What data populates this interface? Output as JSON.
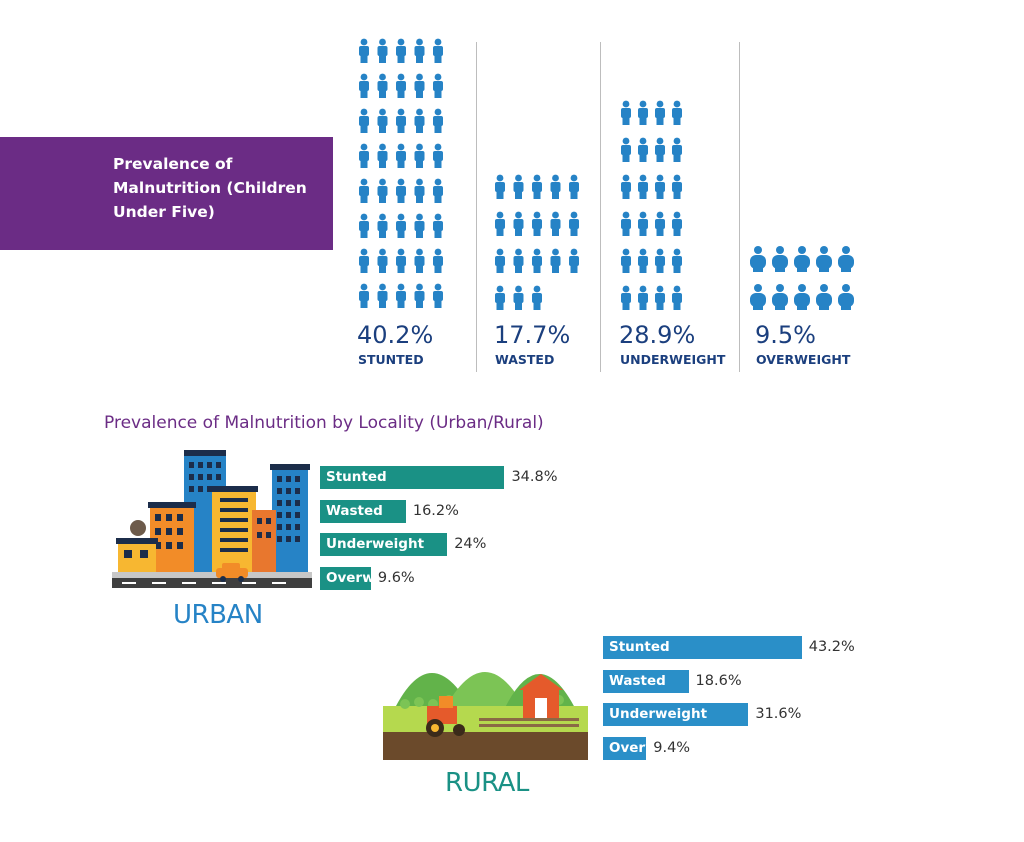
{
  "header": {
    "title": "Prevalence of Malnutrition (Children Under Five)"
  },
  "colors": {
    "purple": "#6b2c85",
    "figure_blue": "#2683c6",
    "stat_text": "#1b3f7e",
    "urban_bar": "#1a9185",
    "rural_bar": "#2a8fc8"
  },
  "chart_data": [
    {
      "type": "bar",
      "title": "Prevalence of Malnutrition (Children Under Five)",
      "categories": [
        "STUNTED",
        "WASTED",
        "UNDERWEIGHT",
        "OVERWEIGHT"
      ],
      "values": [
        40.2,
        17.7,
        28.9,
        9.5
      ],
      "value_labels": [
        "40.2%",
        "17.7%",
        "28.9%",
        "9.5%"
      ],
      "icon": "child-figure-icon"
    },
    {
      "type": "bar",
      "title": "Prevalence of Malnutrition by Locality (Urban/Rural)",
      "scene_label": "URBAN",
      "categories": [
        "Stunted",
        "Wasted",
        "Underweight",
        "Overweight"
      ],
      "values": [
        34.8,
        16.2,
        24,
        9.6
      ],
      "value_labels": [
        "34.8%",
        "16.2%",
        "24%",
        "9.6%"
      ],
      "color": "#1a9185"
    },
    {
      "type": "bar",
      "title": "Prevalence of Malnutrition by Locality (Urban/Rural)",
      "scene_label": "RURAL",
      "categories": [
        "Stunted",
        "Wasted",
        "Underweight",
        "Overweight"
      ],
      "values": [
        43.2,
        18.6,
        31.6,
        9.4
      ],
      "value_labels": [
        "43.2%",
        "18.6%",
        "31.6%",
        "9.4%"
      ],
      "color": "#2a8fc8"
    }
  ],
  "locality": {
    "title": "Prevalence of Malnutrition by Locality (Urban/Rural)"
  }
}
